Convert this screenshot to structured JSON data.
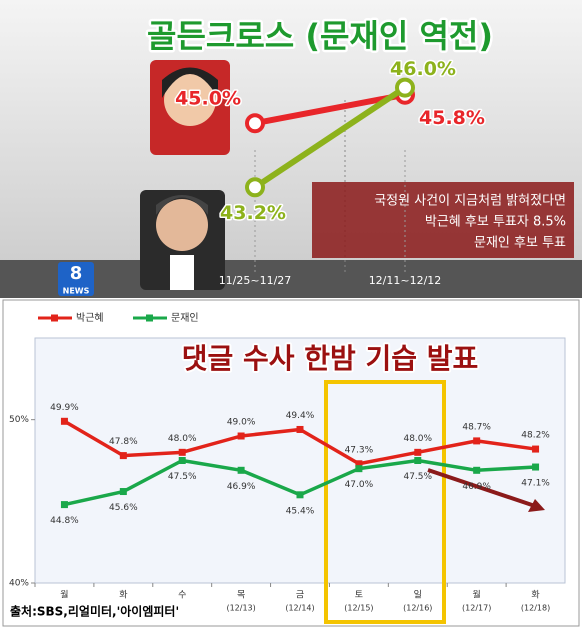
{
  "chart_data": [
    {
      "type": "line",
      "title": "골든크로스 (문재인 역전)",
      "categories": [
        "11/25~11/27",
        "12/11~12/12"
      ],
      "series": [
        {
          "color": "#e8262a",
          "values": [
            45.0,
            45.8
          ],
          "value_labels": [
            "45.0%",
            "45.8%"
          ]
        },
        {
          "color": "#8db21c",
          "values": [
            43.2,
            46.0
          ],
          "value_labels": [
            "43.2%",
            "46.0%"
          ]
        }
      ],
      "ylim": [
        42,
        47
      ],
      "annotation": [
        "국정원 사건이 지금처럼 밝혀졌다면",
        "박근혜 후보 투표자 8.5%",
        "문재인 후보 투표"
      ],
      "logo": [
        "8",
        "NEWS"
      ]
    },
    {
      "type": "line",
      "title": "댓글 수사 한밤 기습 발표",
      "categories": [
        "월",
        "화",
        "수",
        "목",
        "금",
        "토",
        "일",
        "월",
        "화"
      ],
      "dates": [
        null,
        null,
        null,
        "(12/13)",
        "(12/14)",
        "(12/15)",
        "(12/16)",
        "(12/17)",
        "(12/18)"
      ],
      "series": [
        {
          "name": "박근혜",
          "color": "#e2231a",
          "values": [
            49.9,
            47.8,
            48.0,
            49.0,
            49.4,
            47.3,
            48.0,
            48.7,
            48.2
          ],
          "value_labels": [
            "49.9%",
            "47.8%",
            "48.0%",
            "49.0%",
            "49.4%",
            "47.3%",
            "48.0%",
            "48.7%",
            "48.2%"
          ]
        },
        {
          "name": "문재인",
          "color": "#1aa84a",
          "values": [
            44.8,
            45.6,
            47.5,
            46.9,
            45.4,
            47.0,
            47.5,
            46.9,
            47.1
          ],
          "value_labels": [
            "44.8%",
            "45.6%",
            "47.5%",
            "46.9%",
            "45.4%",
            "47.0%",
            "47.5%",
            "46.9%",
            "47.1%"
          ]
        }
      ],
      "ylim": [
        40,
        55
      ],
      "yticks": [
        {
          "value": 40,
          "label": "40%"
        },
        {
          "value": 50,
          "label": "50%"
        }
      ],
      "source": "출처:SBS,리얼미터,'아이엠피터'"
    }
  ]
}
